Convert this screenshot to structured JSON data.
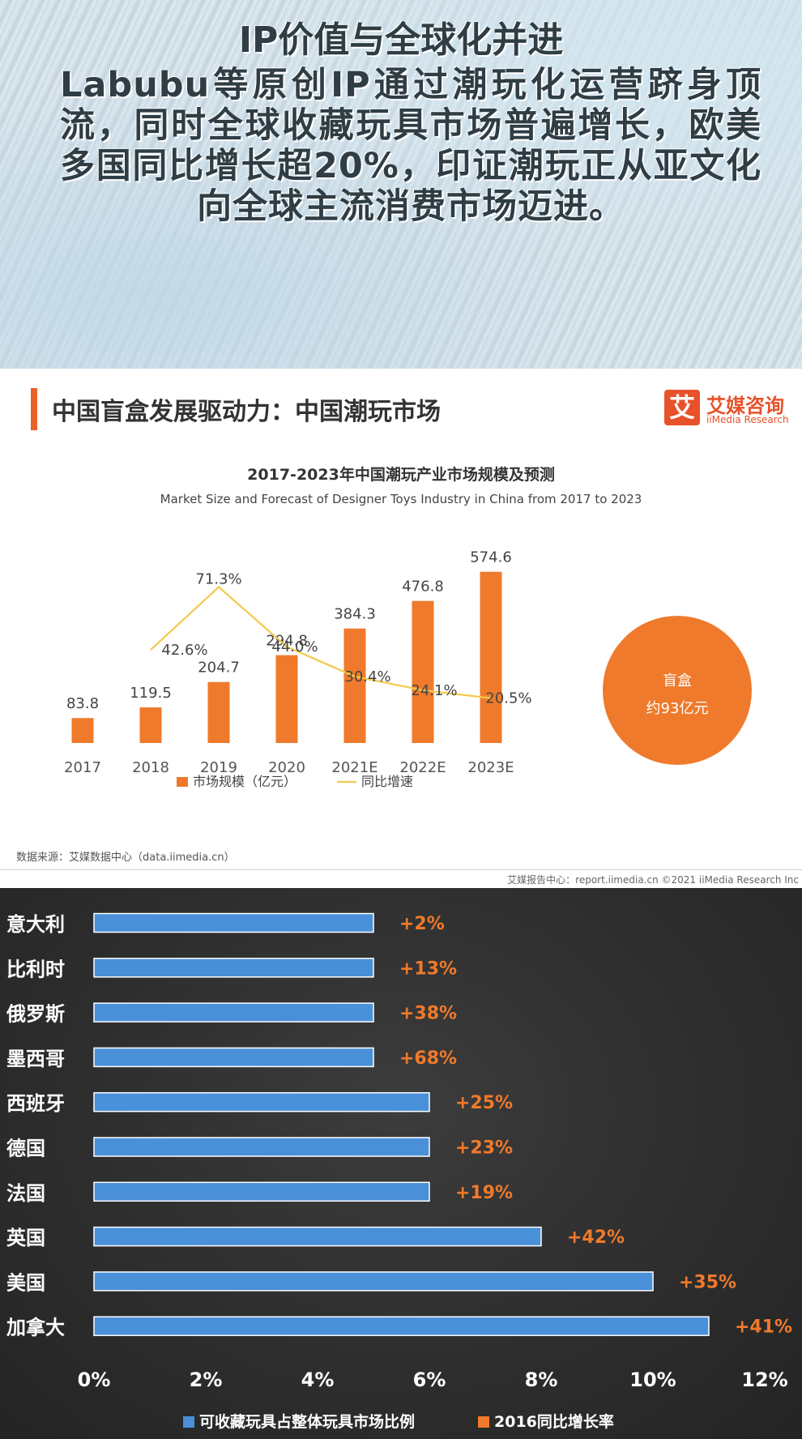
{
  "header": {
    "title": "IP价值与全球化并进",
    "body": "Labubu等原创IP通过潮玩化运营跻身顶流，同时全球收藏玩具市场普遍增长，欧美多国同比增长超20%，印证潮玩正从亚文化向全球主流消费市场迈进。"
  },
  "report": {
    "title": "中国盲盒发展驱动力：中国潮玩市场",
    "logo_mark": "艾",
    "logo_cn": "艾媒咨询",
    "logo_en": "iiMedia Research",
    "source_note": "数据来源：艾媒数据中心（data.iimedia.cn）",
    "footer_note": "艾媒报告中心：report.iimedia.cn   ©2021  iiMedia Research  Inc",
    "circle_label": "盲盒",
    "circle_value": "约93亿元"
  },
  "colors": {
    "orange": "#ef7a2b",
    "yellow_line": "#f2c94c",
    "blue_bar": "#4a90d9",
    "growth_text": "#f07a2b"
  },
  "chart_data": [
    {
      "type": "bar",
      "title": "2017-2023年中国潮玩产业市场规模及预测",
      "subtitle": "Market Size and Forecast of Designer Toys Industry in China from 2017 to 2023",
      "categories": [
        "2017",
        "2018",
        "2019",
        "2020",
        "2021E",
        "2022E",
        "2023E"
      ],
      "series": [
        {
          "name": "市场规模（亿元）",
          "type": "bar",
          "values": [
            83.8,
            119.5,
            204.7,
            294.8,
            384.3,
            476.8,
            574.6
          ],
          "labels": [
            "83.8",
            "119.5",
            "204.7",
            "294.8",
            "384.3",
            "476.8",
            "574.6"
          ]
        },
        {
          "name": "同比增速",
          "type": "line",
          "values": [
            null,
            42.6,
            71.3,
            44.0,
            30.4,
            24.1,
            20.5
          ],
          "labels": [
            "",
            "42.6%",
            "71.3%",
            "44.0%",
            "30.4%",
            "24.1%",
            "20.5%"
          ]
        }
      ],
      "ylim": [
        0,
        620
      ],
      "y2lim": [
        0,
        100
      ],
      "legend_position": "bottom"
    },
    {
      "type": "bar",
      "orientation": "horizontal",
      "categories": [
        "意大利",
        "比利时",
        "俄罗斯",
        "墨西哥",
        "西班牙",
        "德国",
        "法国",
        "英国",
        "美国",
        "加拿大"
      ],
      "series": [
        {
          "name": "可收藏玩具占整体玩具市场比例",
          "values": [
            5,
            5,
            5,
            5,
            6,
            6,
            6,
            8,
            10,
            11
          ]
        },
        {
          "name": "2016同比增长率",
          "values": [
            2,
            13,
            38,
            68,
            25,
            23,
            19,
            42,
            35,
            41
          ],
          "labels": [
            "+2%",
            "+13%",
            "+38%",
            "+68%",
            "+25%",
            "+23%",
            "+19%",
            "+42%",
            "+35%",
            "+41%"
          ]
        }
      ],
      "xlim": [
        0,
        12
      ],
      "xticks": [
        "0%",
        "2%",
        "4%",
        "6%",
        "8%",
        "10%",
        "12%"
      ],
      "legend_position": "bottom"
    }
  ]
}
